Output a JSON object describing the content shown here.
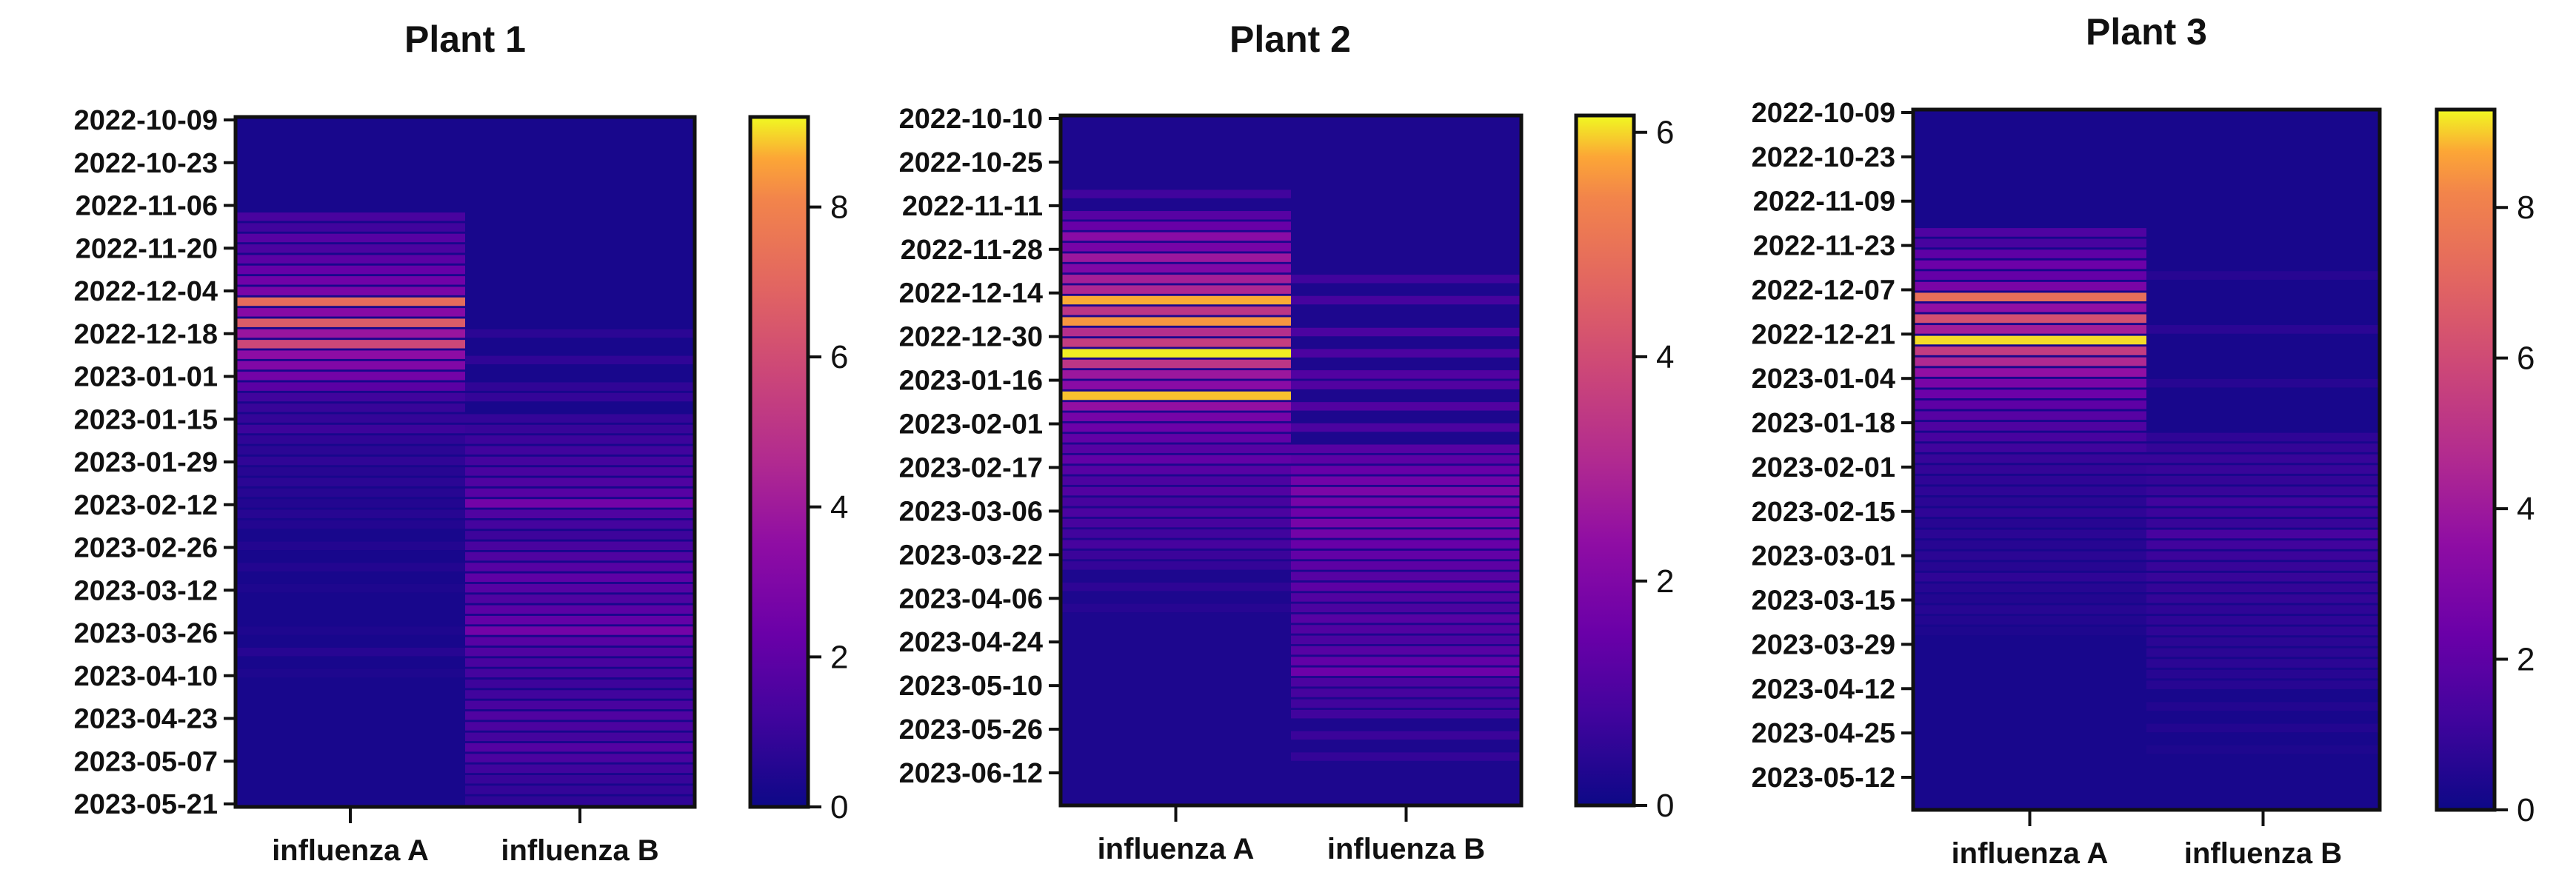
{
  "chart_data": [
    {
      "type": "heatmap",
      "title": "Plant 1",
      "columns": [
        "influenza A",
        "influenza B"
      ],
      "y_ticks": [
        "2022-10-09",
        "2022-10-23",
        "2022-11-06",
        "2022-11-20",
        "2022-12-04",
        "2022-12-18",
        "2023-01-01",
        "2023-01-15",
        "2023-01-29",
        "2023-02-12",
        "2023-02-26",
        "2023-03-12",
        "2023-03-26",
        "2023-04-10",
        "2023-04-23",
        "2023-05-07",
        "2023-05-21"
      ],
      "colorbar": {
        "ticks": [
          "0",
          "2",
          "4",
          "6",
          "8"
        ],
        "range": [
          0,
          9.2
        ]
      },
      "rows": 130,
      "hot_rows": {
        "influenza A": [
          [
            18,
            1.4
          ],
          [
            20,
            1.2
          ],
          [
            22,
            1.8
          ],
          [
            24,
            1.5
          ],
          [
            26,
            1.9
          ],
          [
            28,
            2.2
          ],
          [
            30,
            2.5
          ],
          [
            32,
            2.8
          ],
          [
            34,
            7.2
          ],
          [
            36,
            3.2
          ],
          [
            38,
            6.6
          ],
          [
            40,
            3.8
          ],
          [
            42,
            5.8
          ],
          [
            44,
            3.4
          ],
          [
            46,
            3.0
          ],
          [
            48,
            2.6
          ],
          [
            50,
            1.9
          ],
          [
            52,
            1.2
          ],
          [
            54,
            1.0
          ],
          [
            56,
            0.9
          ],
          [
            58,
            1.1
          ],
          [
            60,
            0.8
          ],
          [
            62,
            0.7
          ],
          [
            64,
            0.8
          ],
          [
            66,
            0.6
          ],
          [
            68,
            0.7
          ],
          [
            70,
            0.6
          ],
          [
            72,
            0.5
          ],
          [
            74,
            0.6
          ],
          [
            76,
            0.5
          ],
          [
            80,
            0.5
          ],
          [
            84,
            0.5
          ],
          [
            88,
            0.4
          ],
          [
            96,
            0.4
          ],
          [
            100,
            0.6
          ],
          [
            104,
            0.4
          ]
        ],
        "influenza B": [
          [
            40,
            0.7
          ],
          [
            45,
            0.8
          ],
          [
            50,
            0.8
          ],
          [
            52,
            0.9
          ],
          [
            56,
            0.9
          ],
          [
            58,
            1.0
          ],
          [
            60,
            1.1
          ],
          [
            62,
            1.2
          ],
          [
            64,
            1.3
          ],
          [
            66,
            1.4
          ],
          [
            68,
            1.6
          ],
          [
            70,
            1.8
          ],
          [
            72,
            2.6
          ],
          [
            74,
            1.6
          ],
          [
            76,
            1.3
          ],
          [
            78,
            1.1
          ],
          [
            80,
            1.4
          ],
          [
            82,
            1.6
          ],
          [
            84,
            1.8
          ],
          [
            86,
            2.0
          ],
          [
            88,
            1.8
          ],
          [
            90,
            1.6
          ],
          [
            92,
            1.9
          ],
          [
            94,
            2.1
          ],
          [
            96,
            2.6
          ],
          [
            98,
            1.8
          ],
          [
            100,
            1.6
          ],
          [
            102,
            1.4
          ],
          [
            104,
            1.3
          ],
          [
            106,
            1.1
          ],
          [
            108,
            1.2
          ],
          [
            110,
            1.4
          ],
          [
            112,
            1.6
          ],
          [
            114,
            1.5
          ],
          [
            116,
            1.3
          ],
          [
            118,
            1.7
          ],
          [
            120,
            1.5
          ],
          [
            122,
            1.2
          ],
          [
            124,
            1.0
          ],
          [
            126,
            0.9
          ],
          [
            128,
            0.8
          ]
        ]
      }
    },
    {
      "type": "heatmap",
      "title": "Plant 2",
      "columns": [
        "influenza  A",
        "influenza B"
      ],
      "y_ticks": [
        "2022-10-10",
        "2022-10-25",
        "2022-11-11",
        "2022-11-28",
        "2022-12-14",
        "2022-12-30",
        "2023-01-16",
        "2023-02-01",
        "2023-02-17",
        "2023-03-06",
        "2023-03-22",
        "2023-04-06",
        "2023-04-24",
        "2023-05-10",
        "2023-05-26",
        "2023-06-12"
      ],
      "colorbar": {
        "ticks": [
          "0",
          "2",
          "4",
          "6"
        ],
        "range": [
          0,
          6.15
        ]
      },
      "rows": 130,
      "hot_rows": {
        "influenza A": [
          [
            14,
            0.8
          ],
          [
            18,
            1.2
          ],
          [
            20,
            1.5
          ],
          [
            22,
            2.2
          ],
          [
            24,
            1.8
          ],
          [
            26,
            2.6
          ],
          [
            28,
            2.0
          ],
          [
            30,
            2.8
          ],
          [
            32,
            3.0
          ],
          [
            34,
            5.8
          ],
          [
            36,
            3.4
          ],
          [
            38,
            5.6
          ],
          [
            40,
            3.2
          ],
          [
            42,
            3.6
          ],
          [
            44,
            6.1
          ],
          [
            46,
            3.4
          ],
          [
            48,
            2.6
          ],
          [
            50,
            2.2
          ],
          [
            52,
            5.9
          ],
          [
            54,
            2.4
          ],
          [
            56,
            1.8
          ],
          [
            58,
            1.6
          ],
          [
            60,
            1.4
          ],
          [
            62,
            1.2
          ],
          [
            64,
            1.4
          ],
          [
            66,
            1.2
          ],
          [
            68,
            1.0
          ],
          [
            70,
            1.1
          ],
          [
            72,
            0.9
          ],
          [
            74,
            1.0
          ],
          [
            76,
            0.9
          ],
          [
            78,
            0.8
          ],
          [
            80,
            0.9
          ],
          [
            82,
            0.7
          ],
          [
            84,
            0.6
          ],
          [
            88,
            0.5
          ],
          [
            92,
            0.4
          ]
        ],
        "influenza B": [
          [
            30,
            0.8
          ],
          [
            34,
            0.9
          ],
          [
            40,
            1.0
          ],
          [
            44,
            1.0
          ],
          [
            48,
            1.1
          ],
          [
            50,
            1.1
          ],
          [
            54,
            1.1
          ],
          [
            58,
            1.0
          ],
          [
            62,
            1.2
          ],
          [
            64,
            1.3
          ],
          [
            66,
            1.5
          ],
          [
            68,
            1.7
          ],
          [
            70,
            1.9
          ],
          [
            72,
            1.8
          ],
          [
            74,
            1.6
          ],
          [
            76,
            1.8
          ],
          [
            78,
            1.7
          ],
          [
            80,
            1.5
          ],
          [
            82,
            1.4
          ],
          [
            84,
            1.3
          ],
          [
            86,
            1.2
          ],
          [
            88,
            1.3
          ],
          [
            90,
            1.1
          ],
          [
            92,
            1.0
          ],
          [
            94,
            1.2
          ],
          [
            96,
            1.1
          ],
          [
            98,
            1.0
          ],
          [
            100,
            1.2
          ],
          [
            102,
            1.4
          ],
          [
            104,
            1.6
          ],
          [
            106,
            1.0
          ],
          [
            108,
            0.9
          ],
          [
            110,
            0.8
          ],
          [
            112,
            0.8
          ],
          [
            116,
            0.7
          ],
          [
            120,
            0.6
          ]
        ]
      }
    },
    {
      "type": "heatmap",
      "title": "Plant 3",
      "columns": [
        "influenza A",
        "influenza B"
      ],
      "y_ticks": [
        "2022-10-09",
        "2022-10-23",
        "2022-11-09",
        "2022-11-23",
        "2022-12-07",
        "2022-12-21",
        "2023-01-04",
        "2023-01-18",
        "2023-02-01",
        "2023-02-15",
        "2023-03-01",
        "2023-03-15",
        "2023-03-29",
        "2023-04-12",
        "2023-04-25",
        "2023-05-12"
      ],
      "colorbar": {
        "ticks": [
          "0",
          "2",
          "4",
          "6",
          "8"
        ],
        "range": [
          0,
          9.3
        ]
      },
      "rows": 130,
      "hot_rows": {
        "influenza A": [
          [
            22,
            1.6
          ],
          [
            24,
            1.4
          ],
          [
            26,
            2.0
          ],
          [
            28,
            2.4
          ],
          [
            30,
            2.2
          ],
          [
            32,
            2.8
          ],
          [
            34,
            7.4
          ],
          [
            36,
            3.6
          ],
          [
            38,
            6.2
          ],
          [
            40,
            4.2
          ],
          [
            42,
            9.1
          ],
          [
            44,
            5.4
          ],
          [
            46,
            4.6
          ],
          [
            48,
            3.6
          ],
          [
            50,
            2.8
          ],
          [
            52,
            2.4
          ],
          [
            54,
            2.0
          ],
          [
            56,
            1.8
          ],
          [
            58,
            1.6
          ],
          [
            60,
            1.4
          ],
          [
            62,
            1.2
          ],
          [
            64,
            1.0
          ],
          [
            66,
            0.9
          ],
          [
            68,
            0.8
          ],
          [
            70,
            0.8
          ],
          [
            72,
            0.7
          ],
          [
            74,
            0.8
          ],
          [
            76,
            0.6
          ],
          [
            78,
            0.7
          ],
          [
            80,
            0.6
          ],
          [
            82,
            0.7
          ],
          [
            84,
            0.6
          ],
          [
            86,
            0.8
          ],
          [
            88,
            0.6
          ],
          [
            90,
            0.5
          ],
          [
            92,
            0.6
          ],
          [
            94,
            0.5
          ],
          [
            96,
            0.4
          ]
        ],
        "influenza B": [
          [
            30,
            0.6
          ],
          [
            40,
            0.7
          ],
          [
            50,
            0.6
          ],
          [
            60,
            0.8
          ],
          [
            62,
            0.9
          ],
          [
            64,
            1.0
          ],
          [
            66,
            1.0
          ],
          [
            68,
            0.9
          ],
          [
            70,
            1.0
          ],
          [
            72,
            1.2
          ],
          [
            74,
            1.1
          ],
          [
            76,
            1.0
          ],
          [
            78,
            1.4
          ],
          [
            80,
            1.2
          ],
          [
            82,
            1.1
          ],
          [
            84,
            1.0
          ],
          [
            86,
            1.0
          ],
          [
            88,
            0.9
          ],
          [
            90,
            0.9
          ],
          [
            92,
            0.8
          ],
          [
            94,
            0.8
          ],
          [
            96,
            0.8
          ],
          [
            98,
            0.7
          ],
          [
            100,
            0.7
          ],
          [
            102,
            0.7
          ],
          [
            104,
            0.6
          ],
          [
            106,
            0.6
          ],
          [
            110,
            0.5
          ],
          [
            114,
            0.5
          ],
          [
            118,
            0.4
          ]
        ]
      }
    }
  ]
}
